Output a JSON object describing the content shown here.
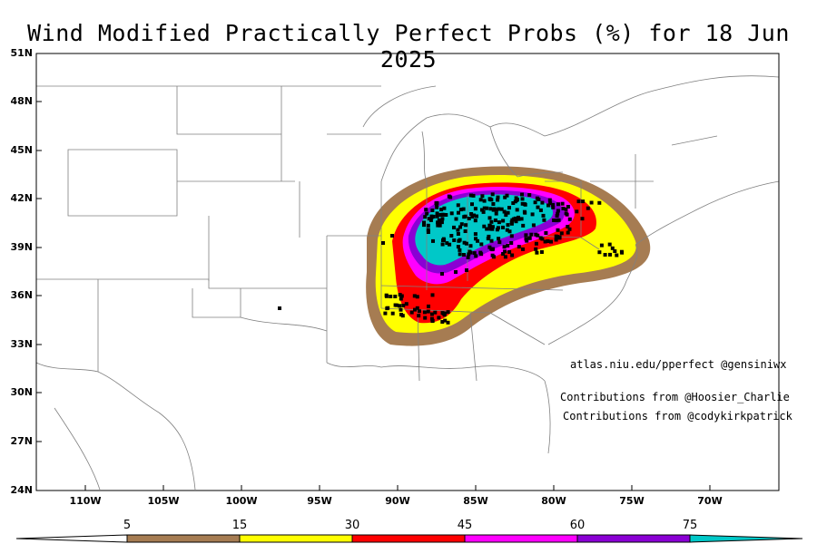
{
  "title": "Wind Modified Practically Perfect Probs (%) for 18 Jun 2025",
  "lat_labels": [
    "51N",
    "48N",
    "45N",
    "42N",
    "39N",
    "36N",
    "33N",
    "30N",
    "27N",
    "24N"
  ],
  "lon_labels": [
    "110W",
    "105W",
    "100W",
    "95W",
    "90W",
    "85W",
    "80W",
    "75W",
    "70W"
  ],
  "credits": {
    "site": "atlas.niu.edu/pperfect @gensiniwx",
    "contrib1": "Contributions from @Hoosier_Charlie",
    "contrib2": "Contributions from @codykirkpatrick"
  },
  "colorbar": {
    "labels": [
      "5",
      "15",
      "30",
      "45",
      "60",
      "75"
    ],
    "colors": [
      "#a67c52",
      "#ffff00",
      "#ff0000",
      "#ff00ff",
      "#8a00d4",
      "#00c8c8"
    ]
  },
  "probability_contours": [
    {
      "level": 5,
      "color": "#a67c52"
    },
    {
      "level": 15,
      "color": "#ffff00"
    },
    {
      "level": 30,
      "color": "#ff0000"
    },
    {
      "level": 45,
      "color": "#ff00ff"
    },
    {
      "level": 60,
      "color": "#8a00d4"
    },
    {
      "level": 75,
      "color": "#00c8c8"
    }
  ]
}
